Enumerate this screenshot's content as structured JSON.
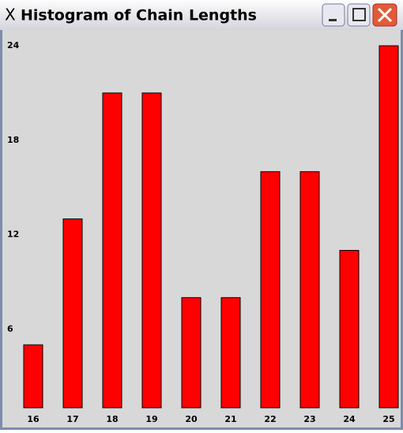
{
  "window": {
    "title": "Histogram of Chain Lengths"
  },
  "chart_data": {
    "type": "bar",
    "categories": [
      "16",
      "17",
      "18",
      "19",
      "20",
      "21",
      "22",
      "23",
      "24",
      "25"
    ],
    "values": [
      5,
      13,
      21,
      21,
      8,
      8,
      16,
      16,
      11,
      24
    ],
    "color": "#ff0000",
    "ylim": [
      0,
      24
    ],
    "yticks": [
      6,
      12,
      18,
      24
    ],
    "grid": false
  }
}
